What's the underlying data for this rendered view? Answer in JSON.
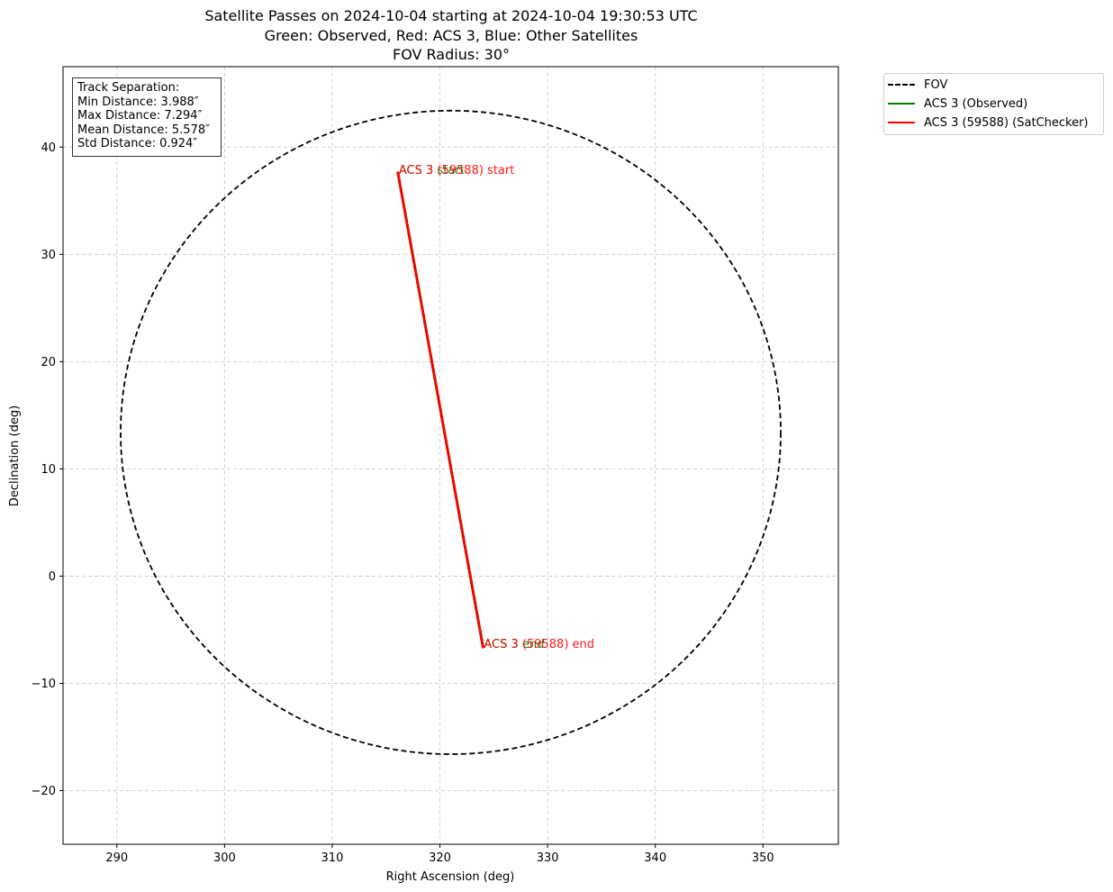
{
  "chart_data": {
    "type": "line",
    "title_lines": [
      "Satellite Passes on 2024-10-04 starting at 2024-10-04 19:30:53 UTC",
      "Green: Observed, Red: ACS 3, Blue: Other Satellites",
      "FOV Radius: 30°"
    ],
    "xlabel": "Right Ascension (deg)",
    "ylabel": "Declination (deg)",
    "xlim": [
      285,
      357
    ],
    "ylim": [
      -25,
      47.5
    ],
    "xticks": [
      290,
      300,
      310,
      320,
      330,
      340,
      350
    ],
    "yticks": [
      -20,
      -10,
      0,
      10,
      20,
      30,
      40
    ],
    "grid": true,
    "legend_position": "outside-top-right",
    "fov": {
      "name": "FOV",
      "center_ra": 321.0,
      "center_dec": 13.4,
      "ra_half_width": 30.65,
      "dec_radius": 30.0,
      "color": "#000000",
      "style": "dashed"
    },
    "series": [
      {
        "name": "ACS 3 (Observed)",
        "color": "#008000",
        "x": [
          316.1,
          324.0
        ],
        "y": [
          37.6,
          -6.6
        ]
      },
      {
        "name": "ACS 3 (59588) (SatChecker)",
        "color": "#ff0000",
        "x": [
          316.1,
          324.0
        ],
        "y": [
          37.6,
          -6.6
        ]
      }
    ],
    "annotations": [
      {
        "text": "ACS 3 start",
        "x": 316.1,
        "y": 37.6,
        "color": "#008000"
      },
      {
        "text": "ACS 3 (59588) start",
        "x": 316.1,
        "y": 37.6,
        "color": "#ff0000"
      },
      {
        "text": "ACS 3 end",
        "x": 324.0,
        "y": -6.6,
        "color": "#008000"
      },
      {
        "text": "ACS 3 (59588) end",
        "x": 324.0,
        "y": -6.6,
        "color": "#ff0000"
      }
    ],
    "track_separation": {
      "heading": "Track Separation:",
      "lines": [
        "Min Distance: 3.988″",
        "Max Distance: 7.294″",
        "Mean Distance: 5.578″",
        "Std Distance: 0.924″"
      ]
    },
    "legend": [
      {
        "label": "FOV",
        "color": "#000000",
        "style": "dashed"
      },
      {
        "label": "ACS 3 (Observed)",
        "color": "#008000",
        "style": "solid"
      },
      {
        "label": "ACS 3 (59588) (SatChecker)",
        "color": "#ff0000",
        "style": "solid"
      }
    ]
  }
}
